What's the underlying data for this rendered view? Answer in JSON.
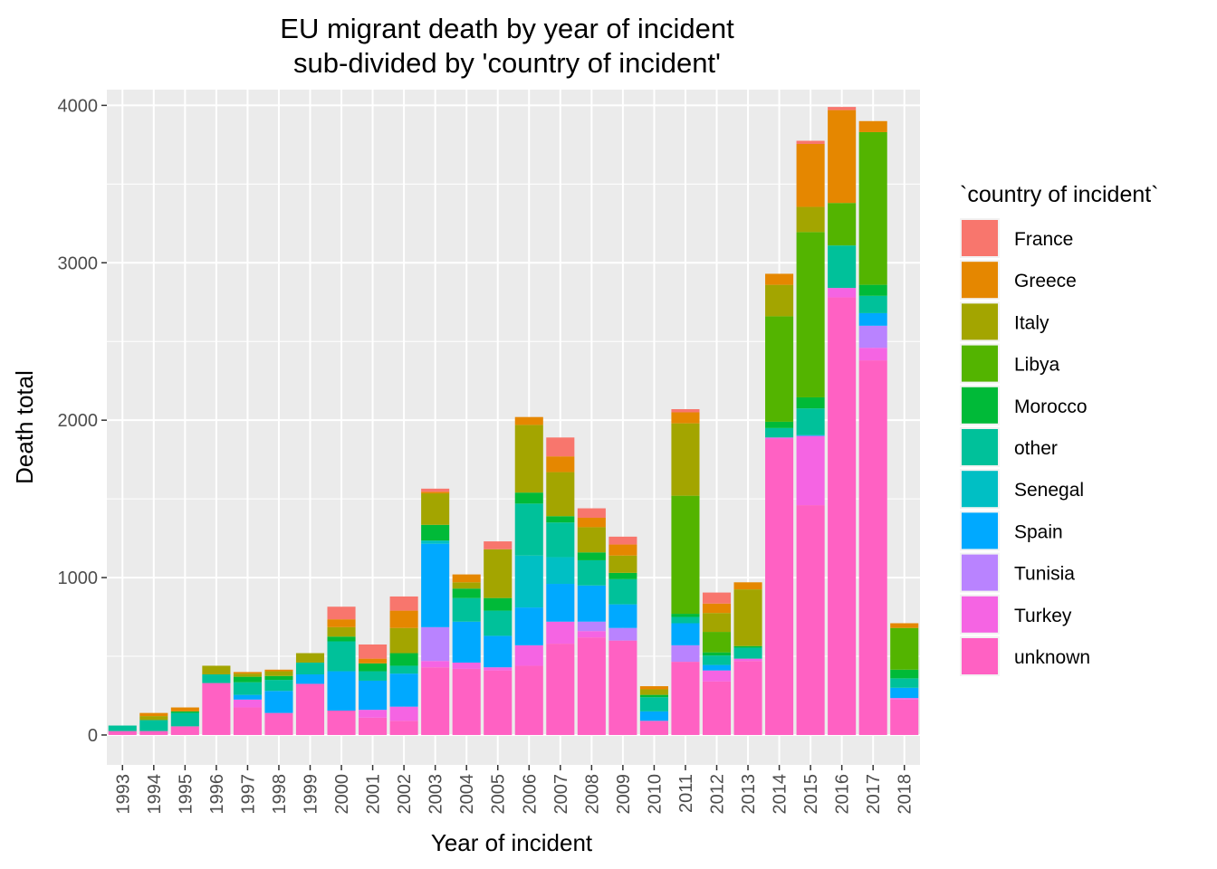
{
  "chart_data": {
    "type": "bar",
    "stacked": true,
    "title_lines": [
      "EU migrant death by year of incident",
      "sub-divided by 'country of incident'"
    ],
    "xlabel": "Year of incident",
    "ylabel": "Death total",
    "ylim": [
      -190,
      4100
    ],
    "yticks": [
      0,
      1000,
      2000,
      3000,
      4000
    ],
    "grid": true,
    "legend_position": "right",
    "legend_title": "`country of incident`",
    "categories": [
      "1993",
      "1994",
      "1995",
      "1996",
      "1997",
      "1998",
      "1999",
      "2000",
      "2001",
      "2002",
      "2003",
      "2004",
      "2005",
      "2006",
      "2007",
      "2008",
      "2009",
      "2010",
      "2011",
      "2012",
      "2013",
      "2014",
      "2015",
      "2016",
      "2017",
      "2018"
    ],
    "series": [
      {
        "name": "unknown",
        "color": "#FF61C3",
        "values": [
          25,
          25,
          55,
          330,
          175,
          140,
          325,
          155,
          110,
          90,
          430,
          420,
          410,
          440,
          580,
          620,
          600,
          90,
          465,
          340,
          470,
          1880,
          1460,
          2780,
          2380,
          225
        ]
      },
      {
        "name": "Turkey",
        "color": "#F564E3",
        "values": [
          0,
          0,
          0,
          0,
          50,
          0,
          0,
          0,
          50,
          90,
          40,
          40,
          20,
          130,
          140,
          40,
          0,
          0,
          0,
          70,
          15,
          10,
          440,
          60,
          80,
          10
        ]
      },
      {
        "name": "Tunisia",
        "color": "#B983FF",
        "values": [
          0,
          0,
          0,
          0,
          0,
          0,
          0,
          0,
          0,
          0,
          215,
          0,
          0,
          0,
          0,
          60,
          80,
          0,
          105,
          0,
          0,
          0,
          0,
          0,
          140,
          0
        ]
      },
      {
        "name": "Spain",
        "color": "#00A9FF",
        "values": [
          0,
          0,
          0,
          0,
          30,
          140,
          60,
          250,
          185,
          210,
          530,
          260,
          200,
          240,
          240,
          230,
          150,
          60,
          140,
          35,
          0,
          0,
          5,
          0,
          80,
          65
        ]
      },
      {
        "name": "Senegal",
        "color": "#00BFC4",
        "values": [
          0,
          0,
          0,
          0,
          0,
          0,
          0,
          0,
          0,
          0,
          20,
          0,
          0,
          330,
          170,
          0,
          0,
          0,
          0,
          0,
          0,
          0,
          0,
          0,
          0,
          0
        ]
      },
      {
        "name": "other",
        "color": "#00C19A",
        "values": [
          35,
          70,
          85,
          55,
          80,
          70,
          75,
          190,
          60,
          50,
          0,
          150,
          160,
          330,
          220,
          160,
          160,
          90,
          40,
          60,
          70,
          60,
          170,
          270,
          110,
          60
        ]
      },
      {
        "name": "Morocco",
        "color": "#00BA38",
        "values": [
          0,
          0,
          10,
          0,
          35,
          25,
          0,
          30,
          50,
          80,
          100,
          60,
          80,
          70,
          40,
          50,
          40,
          15,
          20,
          20,
          10,
          40,
          70,
          0,
          70,
          55
        ]
      },
      {
        "name": "Libya",
        "color": "#53B400",
        "values": [
          0,
          0,
          0,
          0,
          0,
          0,
          0,
          0,
          0,
          0,
          0,
          0,
          0,
          0,
          0,
          0,
          0,
          0,
          750,
          130,
          0,
          670,
          1050,
          270,
          970,
          265
        ]
      },
      {
        "name": "Italy",
        "color": "#A3A500",
        "values": [
          0,
          25,
          0,
          55,
          20,
          30,
          60,
          60,
          0,
          160,
          200,
          40,
          310,
          430,
          280,
          160,
          110,
          35,
          460,
          120,
          360,
          200,
          160,
          0,
          0,
          0
        ]
      },
      {
        "name": "Greece",
        "color": "#E58700",
        "values": [
          0,
          20,
          25,
          0,
          10,
          10,
          0,
          50,
          30,
          110,
          10,
          50,
          0,
          50,
          100,
          60,
          70,
          20,
          70,
          60,
          45,
          70,
          400,
          590,
          70,
          30
        ]
      },
      {
        "name": "France",
        "color": "#F8766D",
        "values": [
          0,
          0,
          0,
          0,
          0,
          0,
          0,
          80,
          90,
          90,
          20,
          0,
          50,
          0,
          120,
          60,
          50,
          0,
          20,
          70,
          0,
          0,
          20,
          20,
          0,
          0
        ]
      }
    ],
    "legend_order": [
      "France",
      "Greece",
      "Italy",
      "Libya",
      "Morocco",
      "other",
      "Senegal",
      "Spain",
      "Tunisia",
      "Turkey",
      "unknown"
    ]
  }
}
